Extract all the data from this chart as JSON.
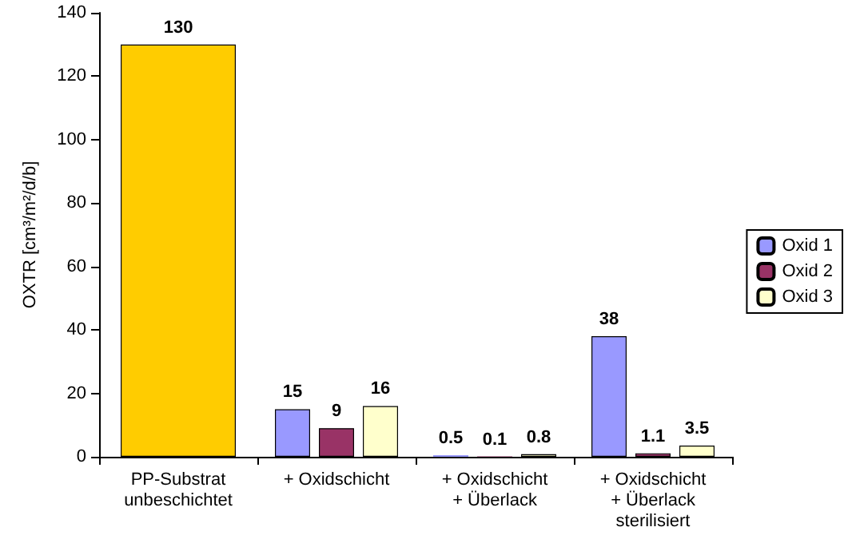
{
  "chart_data": {
    "type": "bar",
    "ylabel": "OXTR [cm³/m²/d/b]",
    "categories": [
      "PP-Substrat\nunbeschichtet",
      "+ Oxidschicht",
      "+ Oxidschicht\n+ Überlack",
      "+ Oxidschicht\n+ Überlack\nsterilisiert"
    ],
    "series": [
      {
        "color": "#ffcc00",
        "values": [
          130,
          null,
          null,
          null
        ]
      },
      {
        "name": "Oxid 1",
        "color": "#9999ff",
        "values": [
          null,
          15,
          0.5,
          38
        ]
      },
      {
        "name": "Oxid 2",
        "color": "#993366",
        "values": [
          null,
          9,
          0.1,
          1.1
        ]
      },
      {
        "name": "Oxid 3",
        "color": "#ffffcc",
        "values": [
          null,
          16,
          0.8,
          3.5
        ]
      }
    ],
    "ylim": [
      0,
      140
    ],
    "yticks": [
      0,
      20,
      40,
      60,
      80,
      100,
      120,
      140
    ],
    "grid": false,
    "legend": "right",
    "data_labels": true
  }
}
